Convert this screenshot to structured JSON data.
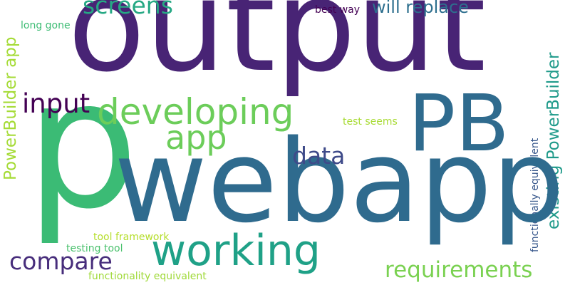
{
  "cloud": {
    "words": [
      {
        "id": "output",
        "text": "output",
        "color": "#482475"
      },
      {
        "id": "p",
        "text": "p",
        "color": "#3bbb75"
      },
      {
        "id": "webapp",
        "text": "webapp",
        "color": "#2f6b8e"
      },
      {
        "id": "PB",
        "text": "PB",
        "color": "#2f6b8e"
      },
      {
        "id": "working",
        "text": "working",
        "color": "#1fa187"
      },
      {
        "id": "developing",
        "text": "developing",
        "color": "#6ccd5a"
      },
      {
        "id": "app",
        "text": "app",
        "color": "#6ccd5a"
      },
      {
        "id": "screens",
        "text": "screens",
        "color": "#26a884"
      },
      {
        "id": "will_replace",
        "text": "will replace",
        "color": "#2d6f8e"
      },
      {
        "id": "input",
        "text": "input",
        "color": "#440154"
      },
      {
        "id": "data",
        "text": "data",
        "color": "#3e4a89"
      },
      {
        "id": "compare",
        "text": "compare",
        "color": "#472d7b"
      },
      {
        "id": "requirements",
        "text": "requirements",
        "color": "#7ad151"
      },
      {
        "id": "PowerBuilder_app",
        "text": "PowerBuilder app",
        "color": "#a5db36"
      },
      {
        "id": "existing_PowerBuilder",
        "text": "existing PowerBuilder",
        "color": "#1f9a8a"
      },
      {
        "id": "functionally_equivalent",
        "text": "functionally equivalent",
        "color": "#38588c"
      },
      {
        "id": "long_gone",
        "text": "long gone",
        "color": "#3dbc74"
      },
      {
        "id": "best_way",
        "text": "best way",
        "color": "#440154"
      },
      {
        "id": "test_seems",
        "text": "test seems",
        "color": "#a8db34"
      },
      {
        "id": "tool_framework",
        "text": "tool framework",
        "color": "#b5de2b"
      },
      {
        "id": "testing_tool",
        "text": "testing tool",
        "color": "#4ac16d"
      },
      {
        "id": "functionality_equivalent",
        "text": "functionality equivalent",
        "color": "#a0da39"
      }
    ]
  }
}
